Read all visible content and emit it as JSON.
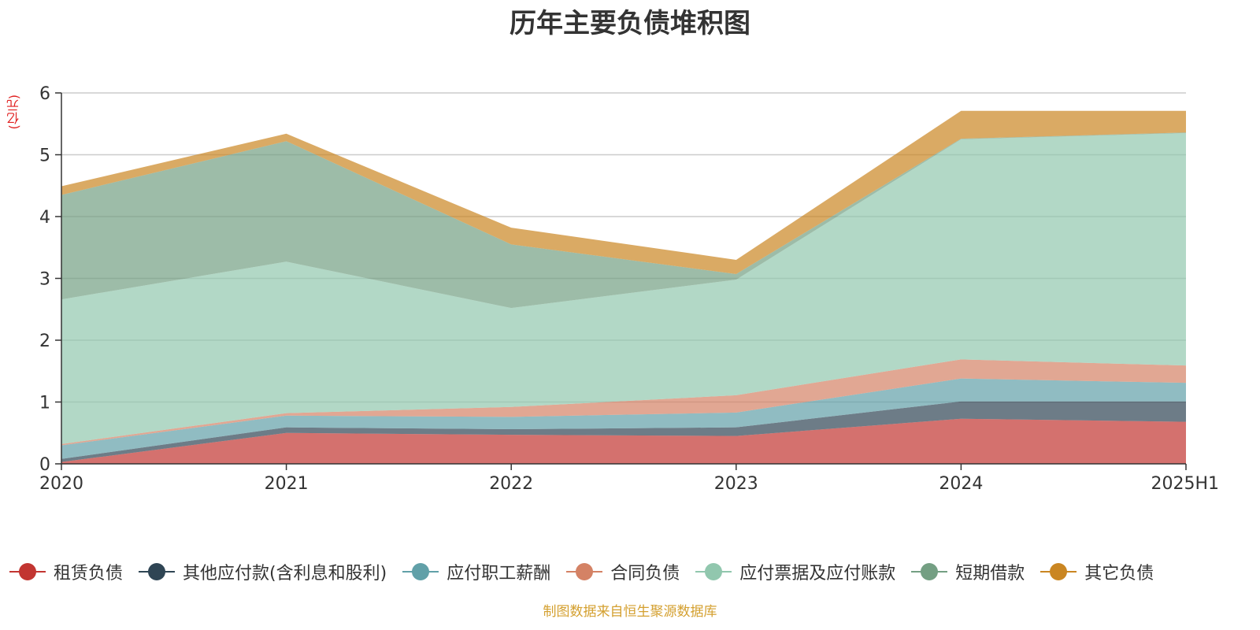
{
  "title": "历年主要负债堆积图",
  "unit_label": "(亿元)",
  "source_note": "制图数据来自恒生聚源数据库",
  "chart_data": {
    "type": "area",
    "stacked": true,
    "title": "历年主要负债堆积图",
    "ylabel": "(亿元)",
    "x": [
      "2020",
      "2021",
      "2022",
      "2023",
      "2024",
      "2025H1"
    ],
    "ylim": [
      0,
      6
    ],
    "yticks": [
      0,
      1,
      2,
      3,
      4,
      5,
      6
    ],
    "grid": true,
    "legend_position": "bottom",
    "series": [
      {
        "name": "租赁负债",
        "color": "#c23531",
        "values": [
          0.03,
          0.5,
          0.47,
          0.45,
          0.73,
          0.68
        ]
      },
      {
        "name": "其他应付款(含利息和股利)",
        "color": "#2f4554",
        "values": [
          0.05,
          0.09,
          0.09,
          0.14,
          0.28,
          0.33
        ]
      },
      {
        "name": "应付职工薪酬",
        "color": "#61a0a8",
        "values": [
          0.22,
          0.19,
          0.2,
          0.24,
          0.37,
          0.3
        ]
      },
      {
        "name": "合同负债",
        "color": "#d48265",
        "values": [
          0.02,
          0.04,
          0.16,
          0.28,
          0.31,
          0.28
        ]
      },
      {
        "name": "应付票据及应付账款",
        "color": "#91c7ae",
        "values": [
          2.34,
          2.45,
          1.6,
          1.87,
          3.56,
          3.76
        ]
      },
      {
        "name": "短期借款",
        "color": "#749f83",
        "values": [
          1.69,
          1.95,
          1.03,
          0.09,
          0.01,
          0.01
        ]
      },
      {
        "name": "其它负债",
        "color": "#ca8622",
        "values": [
          0.14,
          0.12,
          0.27,
          0.23,
          0.45,
          0.35
        ]
      }
    ]
  }
}
